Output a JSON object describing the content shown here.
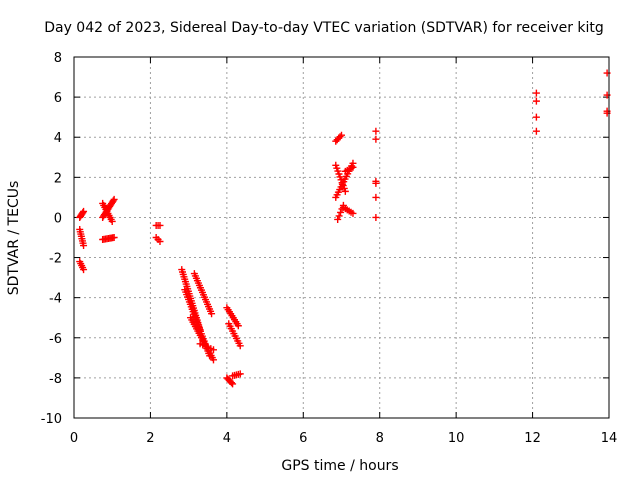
{
  "chart_data": {
    "type": "scatter",
    "title": "Day 042 of 2023, Sidereal Day-to-day VTEC variation (SDTVAR) for receiver kitg",
    "xlabel": "GPS time / hours",
    "ylabel": "SDTVAR / TECUs",
    "xlim": [
      0,
      14
    ],
    "ylim": [
      -10,
      8
    ],
    "xticks": [
      0,
      2,
      4,
      6,
      8,
      10,
      12,
      14
    ],
    "yticks": [
      -10,
      -8,
      -6,
      -4,
      -2,
      0,
      2,
      4,
      6,
      8
    ],
    "xtick_labels": [
      "0",
      "2",
      "4",
      "6",
      "8",
      "10",
      "12",
      "14"
    ],
    "ytick_labels": [
      "-10",
      "-8",
      "-6",
      "-4",
      "-2",
      "0",
      "2",
      "4",
      "6",
      "8"
    ],
    "grid": true,
    "marker": "+",
    "color": "#ff0000",
    "segments": [
      {
        "x0": 0.15,
        "y0": 0.0,
        "x1": 0.25,
        "y1": 0.3,
        "n": 6
      },
      {
        "x0": 0.15,
        "y0": -0.6,
        "x1": 0.25,
        "y1": -1.4,
        "n": 8
      },
      {
        "x0": 0.15,
        "y0": -2.2,
        "x1": 0.25,
        "y1": -2.6,
        "n": 5
      },
      {
        "x0": 0.75,
        "y0": 0.0,
        "x1": 1.05,
        "y1": 0.9,
        "n": 14
      },
      {
        "x0": 0.75,
        "y0": 0.7,
        "x1": 1.0,
        "y1": -0.2,
        "n": 10
      },
      {
        "x0": 0.75,
        "y0": -1.1,
        "x1": 1.05,
        "y1": -1.0,
        "n": 9
      },
      {
        "x0": 2.15,
        "y0": -0.4,
        "x1": 2.25,
        "y1": -0.4,
        "n": 3
      },
      {
        "x0": 2.15,
        "y0": -1.0,
        "x1": 2.25,
        "y1": -1.2,
        "n": 3
      },
      {
        "x0": 2.82,
        "y0": -2.6,
        "x1": 3.3,
        "y1": -5.6,
        "n": 26
      },
      {
        "x0": 2.9,
        "y0": -3.6,
        "x1": 3.55,
        "y1": -6.9,
        "n": 28
      },
      {
        "x0": 3.05,
        "y0": -5.0,
        "x1": 3.65,
        "y1": -7.1,
        "n": 20
      },
      {
        "x0": 3.15,
        "y0": -2.8,
        "x1": 3.6,
        "y1": -4.8,
        "n": 18
      },
      {
        "x0": 3.3,
        "y0": -6.3,
        "x1": 3.65,
        "y1": -6.6,
        "n": 6
      },
      {
        "x0": 4.0,
        "y0": -4.5,
        "x1": 4.3,
        "y1": -5.4,
        "n": 10
      },
      {
        "x0": 4.05,
        "y0": -5.3,
        "x1": 4.35,
        "y1": -6.4,
        "n": 10
      },
      {
        "x0": 4.0,
        "y0": -8.0,
        "x1": 4.15,
        "y1": -8.3,
        "n": 6
      },
      {
        "x0": 4.15,
        "y0": -7.9,
        "x1": 4.35,
        "y1": -7.8,
        "n": 5
      },
      {
        "x0": 6.85,
        "y0": 3.8,
        "x1": 7.0,
        "y1": 4.1,
        "n": 5
      },
      {
        "x0": 6.85,
        "y0": 2.6,
        "x1": 7.1,
        "y1": 1.3,
        "n": 10
      },
      {
        "x0": 6.85,
        "y0": 1.0,
        "x1": 7.3,
        "y1": 2.7,
        "n": 14
      },
      {
        "x0": 6.9,
        "y0": -0.1,
        "x1": 7.05,
        "y1": 0.6,
        "n": 5
      },
      {
        "x0": 7.05,
        "y0": 0.5,
        "x1": 7.3,
        "y1": 0.2,
        "n": 6
      },
      {
        "x0": 7.1,
        "y0": 2.3,
        "x1": 7.3,
        "y1": 2.5,
        "n": 5
      }
    ],
    "points": [
      {
        "x": 7.9,
        "y": 4.3
      },
      {
        "x": 7.9,
        "y": 3.9
      },
      {
        "x": 7.9,
        "y": 1.8
      },
      {
        "x": 7.9,
        "y": 1.7
      },
      {
        "x": 7.9,
        "y": 1.0
      },
      {
        "x": 7.9,
        "y": 0.0
      },
      {
        "x": 12.1,
        "y": 6.2
      },
      {
        "x": 12.1,
        "y": 5.8
      },
      {
        "x": 12.1,
        "y": 5.0
      },
      {
        "x": 12.1,
        "y": 4.3
      },
      {
        "x": 13.95,
        "y": 7.2
      },
      {
        "x": 13.95,
        "y": 6.1
      },
      {
        "x": 13.95,
        "y": 5.3
      },
      {
        "x": 13.95,
        "y": 5.2
      }
    ]
  }
}
